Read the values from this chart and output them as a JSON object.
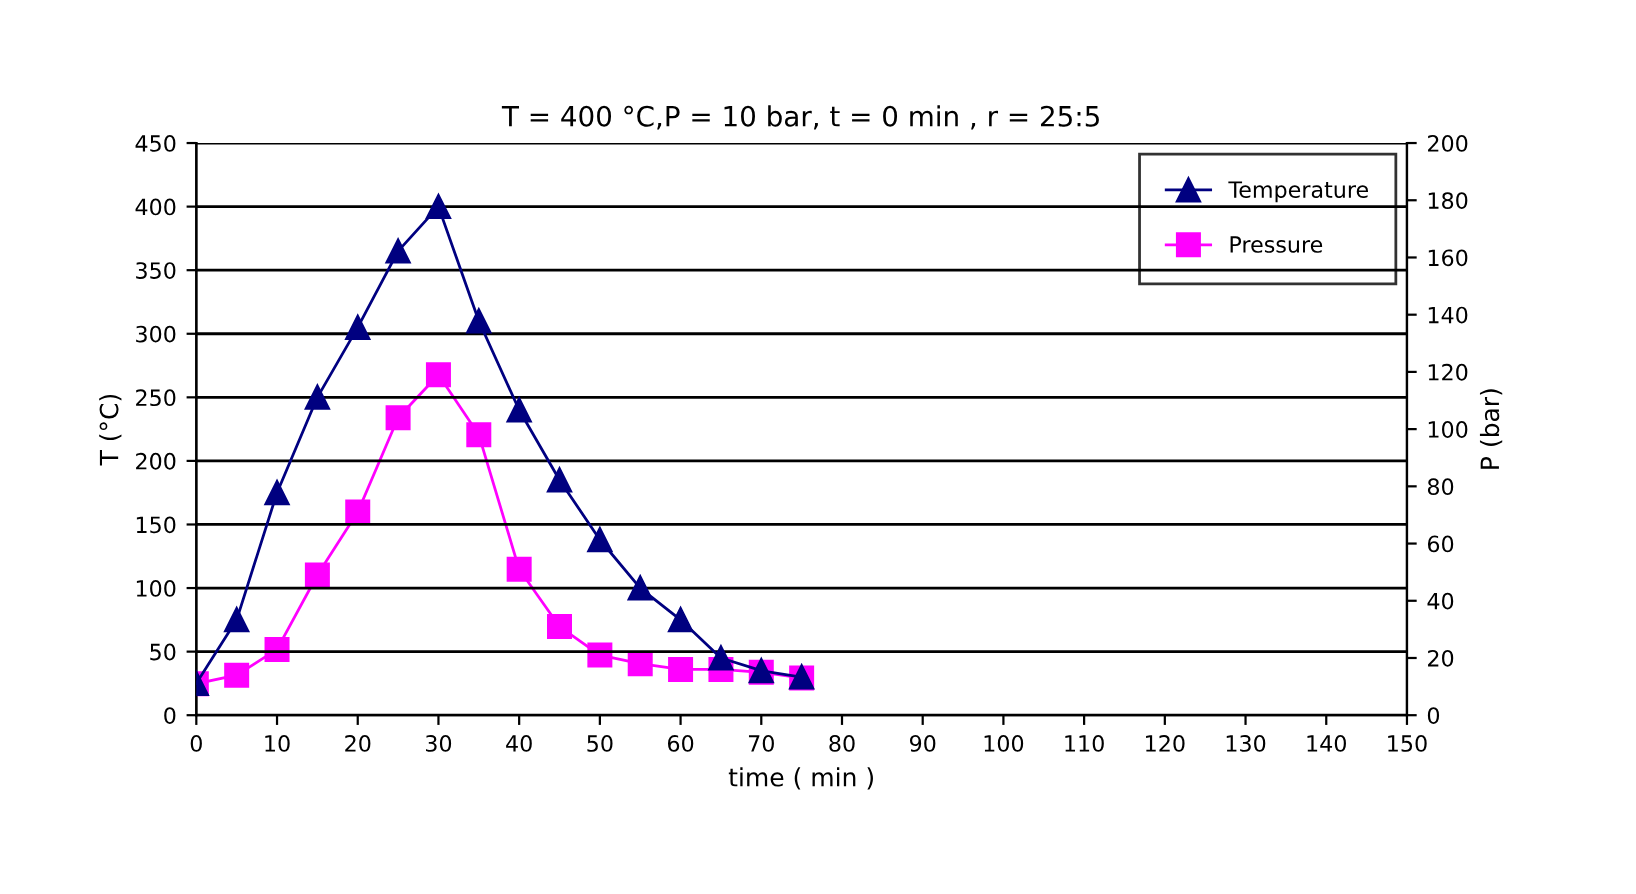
{
  "chart_data": {
    "type": "line",
    "title": "T = 400 °C,P = 10 bar, t = 0 min , r = 25:5",
    "xlabel": "time ( min )",
    "ylabel": "T (°C)",
    "y2label": "P (bar)",
    "x": [
      0,
      5,
      10,
      15,
      20,
      25,
      30,
      35,
      40,
      45,
      50,
      55,
      60,
      65,
      70,
      75
    ],
    "series": [
      {
        "name": "Temperature",
        "color": "#000080",
        "marker": "triangle",
        "values": [
          25,
          75,
          175,
          250,
          305,
          365,
          400,
          310,
          240,
          185,
          138,
          100,
          75,
          45,
          35,
          30
        ]
      },
      {
        "name": "Pressure",
        "color": "#ff00ff",
        "marker": "square",
        "axis": "y2",
        "values": [
          11,
          14,
          23,
          49,
          71,
          104,
          119,
          98,
          51,
          31,
          21,
          18,
          16,
          16,
          15,
          13
        ]
      }
    ],
    "xlim": [
      0,
      150
    ],
    "xticks": [
      0,
      10,
      20,
      30,
      40,
      50,
      60,
      70,
      80,
      90,
      100,
      110,
      120,
      130,
      140,
      150
    ],
    "ylim": [
      0,
      450
    ],
    "yticks": [
      0,
      50,
      100,
      150,
      200,
      250,
      300,
      350,
      400,
      450
    ],
    "y2lim": [
      0,
      200
    ],
    "y2ticks": [
      0,
      20,
      40,
      60,
      80,
      100,
      120,
      140,
      160,
      180,
      200
    ],
    "grid": "y",
    "legend": "top right"
  }
}
